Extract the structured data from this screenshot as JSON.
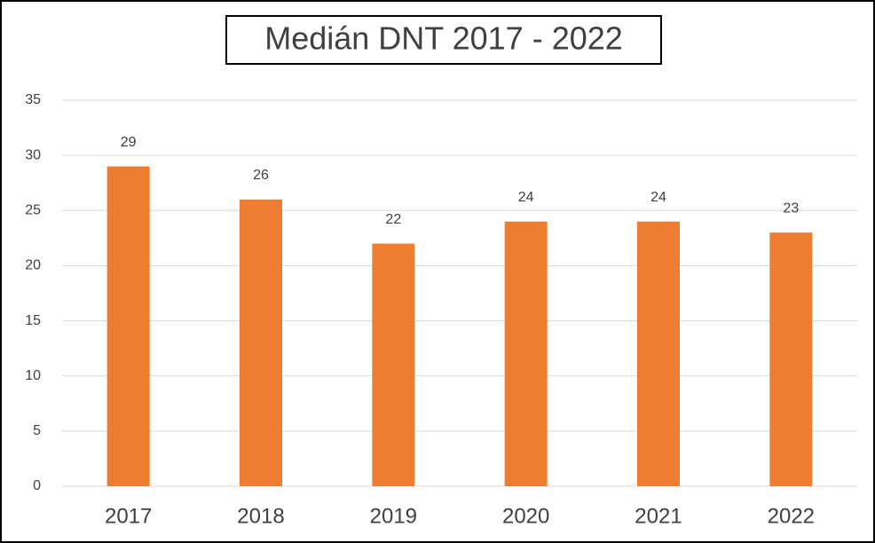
{
  "chart_data": {
    "type": "bar",
    "title": "Medián DNT 2017 - 2022",
    "categories": [
      "2017",
      "2018",
      "2019",
      "2020",
      "2021",
      "2022"
    ],
    "values": [
      29,
      26,
      22,
      24,
      24,
      23
    ],
    "color": "#ed7d31",
    "ylim": [
      0,
      35
    ],
    "yticks": [
      0,
      5,
      10,
      15,
      20,
      25,
      30,
      35
    ],
    "grid": true
  }
}
